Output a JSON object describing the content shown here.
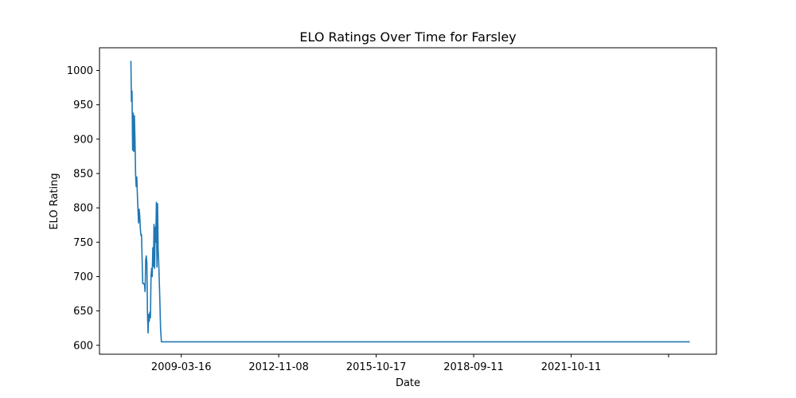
{
  "chart_data": {
    "type": "line",
    "title": "ELO Ratings Over Time for Farsley",
    "xlabel": "Date",
    "ylabel": "ELO Rating",
    "x_ticks": [
      "2009-03-16",
      "2012-11-08",
      "2015-10-17",
      "2018-09-11",
      "2021-10-11",
      ""
    ],
    "y_ticks": [
      600,
      650,
      700,
      750,
      800,
      850,
      900,
      950,
      1000
    ],
    "xlim": [
      "2006-07-27",
      "2026-06-18"
    ],
    "ylim": [
      587,
      1033
    ],
    "grid": false,
    "series": [
      {
        "color": "#1f77b4",
        "points": [
          [
            "2007-08-01",
            1013
          ],
          [
            "2007-08-07",
            955
          ],
          [
            "2007-08-14",
            970
          ],
          [
            "2007-08-21",
            884
          ],
          [
            "2007-08-28",
            938
          ],
          [
            "2007-09-04",
            882
          ],
          [
            "2007-09-11",
            934
          ],
          [
            "2007-09-18",
            900
          ],
          [
            "2007-09-25",
            850
          ],
          [
            "2007-10-02",
            831
          ],
          [
            "2007-10-09",
            845
          ],
          [
            "2007-10-16",
            820
          ],
          [
            "2007-10-23",
            798
          ],
          [
            "2007-10-30",
            778
          ],
          [
            "2007-11-06",
            798
          ],
          [
            "2007-11-13",
            788
          ],
          [
            "2007-11-20",
            770
          ],
          [
            "2007-11-27",
            760
          ],
          [
            "2007-12-04",
            761
          ],
          [
            "2007-12-11",
            725
          ],
          [
            "2007-12-18",
            690
          ],
          [
            "2007-12-29",
            690
          ],
          [
            "2008-01-08",
            688
          ],
          [
            "2008-01-15",
            678
          ],
          [
            "2008-01-22",
            724
          ],
          [
            "2008-01-29",
            730
          ],
          [
            "2008-02-05",
            720
          ],
          [
            "2008-02-12",
            648
          ],
          [
            "2008-02-19",
            618
          ],
          [
            "2008-02-26",
            645
          ],
          [
            "2008-03-04",
            635
          ],
          [
            "2008-03-11",
            648
          ],
          [
            "2008-03-18",
            640
          ],
          [
            "2008-03-25",
            700
          ],
          [
            "2008-04-01",
            712
          ],
          [
            "2008-04-08",
            700
          ],
          [
            "2008-04-15",
            742
          ],
          [
            "2008-04-22",
            715
          ],
          [
            "2008-04-29",
            776
          ],
          [
            "2008-05-06",
            712
          ],
          [
            "2008-05-13",
            772
          ],
          [
            "2008-05-20",
            750
          ],
          [
            "2008-05-27",
            808
          ],
          [
            "2008-06-03",
            714
          ],
          [
            "2008-06-10",
            806
          ],
          [
            "2008-06-17",
            740
          ],
          [
            "2008-06-24",
            718
          ],
          [
            "2008-07-01",
            690
          ],
          [
            "2008-07-08",
            660
          ],
          [
            "2008-07-15",
            625
          ],
          [
            "2008-07-25",
            605
          ],
          [
            "2025-08-01",
            605
          ]
        ]
      }
    ]
  }
}
